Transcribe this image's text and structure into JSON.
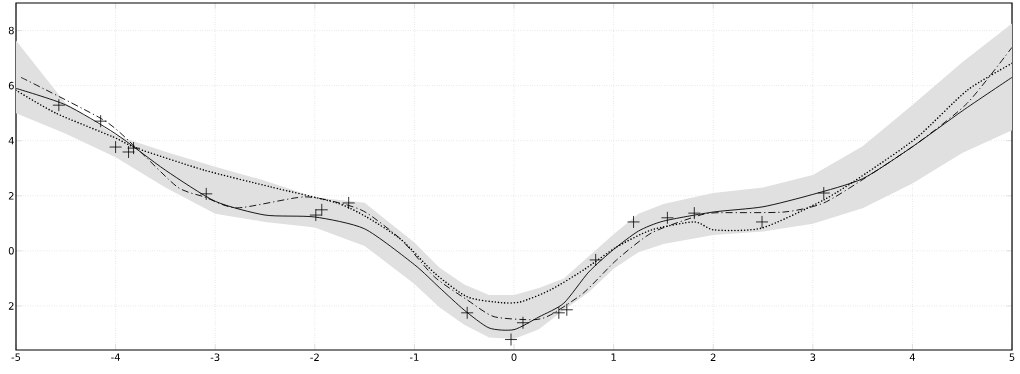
{
  "chart_data": {
    "type": "line",
    "xlim": [
      -5,
      5
    ],
    "ylim": [
      -3.6,
      9
    ],
    "xticks": [
      -5,
      -4,
      -3,
      -2,
      -1,
      0,
      1,
      2,
      3,
      4,
      5
    ],
    "yticks": [
      {
        "value": -2,
        "label": "2"
      },
      0,
      2,
      4,
      6,
      8
    ],
    "grid": true,
    "series": [
      {
        "color": "#000000",
        "line_style": "solid",
        "x": [
          -5,
          -4.5,
          -4,
          -3.5,
          -3,
          -2.5,
          -2,
          -1.5,
          -1,
          -0.75,
          -0.5,
          -0.25,
          0,
          0.25,
          0.5,
          0.75,
          1,
          1.25,
          1.5,
          2,
          2.5,
          3,
          3.5,
          4,
          4.5,
          5
        ],
        "values": [
          5.9,
          5.3,
          4.25,
          2.93,
          1.8,
          1.3,
          1.23,
          0.8,
          -0.5,
          -1.33,
          -2.15,
          -2.8,
          -2.86,
          -2.4,
          -1.9,
          -0.77,
          0.05,
          0.72,
          1.08,
          1.41,
          1.6,
          2.05,
          2.62,
          3.78,
          5.08,
          6.3
        ],
        "lower": [
          5.0,
          4.25,
          3.4,
          2.3,
          1.35,
          1.05,
          0.85,
          0.18,
          -1.2,
          -2.05,
          -2.68,
          -3.15,
          -3.2,
          -2.85,
          -2.15,
          -1.5,
          -0.65,
          -0.05,
          0.25,
          0.58,
          0.7,
          0.98,
          1.55,
          2.45,
          3.55,
          4.38
        ],
        "upper": [
          7.64,
          5.35,
          4.2,
          3.6,
          3.05,
          2.55,
          1.95,
          1.75,
          0.3,
          -0.6,
          -1.22,
          -1.6,
          -1.6,
          -1.35,
          -1.0,
          -0.2,
          0.6,
          1.35,
          1.7,
          2.1,
          2.3,
          2.75,
          3.8,
          5.3,
          6.85,
          8.26
        ]
      },
      {
        "color": "#000000",
        "line_style": "dashed",
        "x": [
          -4.95,
          -4.12,
          -3.79,
          -3.38,
          -3.11,
          -2.78,
          -2.11,
          -1.71,
          -1.48,
          -1.13,
          -0.8,
          -0.47,
          -0.2,
          0.2,
          0.37,
          0.7,
          1.03,
          1.38,
          1.81,
          2.01,
          2.71,
          3.11,
          3.54,
          4.05,
          4.55,
          5
        ],
        "values": [
          6.3,
          4.75,
          3.73,
          2.32,
          1.96,
          1.56,
          1.96,
          1.7,
          1.38,
          0.4,
          -0.94,
          -1.78,
          -2.39,
          -2.5,
          -2.32,
          -1.52,
          -0.33,
          0.65,
          1.23,
          1.38,
          1.41,
          1.74,
          2.68,
          3.91,
          5.36,
          7.39
        ]
      },
      {
        "color": "#000000",
        "line_style": "dotted",
        "x": [
          -5,
          -4.6,
          -4.02,
          -3.79,
          -3.11,
          -2.44,
          -1.78,
          -1.48,
          -1.13,
          -0.8,
          -0.47,
          -0.13,
          0.07,
          0.37,
          0.7,
          1.03,
          1.38,
          1.81,
          2.01,
          2.49,
          3.11,
          3.54,
          4.05,
          4.55,
          5
        ],
        "values": [
          5.83,
          5.0,
          4.13,
          3.73,
          2.93,
          2.32,
          1.74,
          1.23,
          0.4,
          -0.8,
          -1.67,
          -1.88,
          -1.85,
          -1.41,
          -0.69,
          0.14,
          0.76,
          1.05,
          0.76,
          0.83,
          1.85,
          2.83,
          4.13,
          5.83,
          6.81
        ]
      },
      {
        "type": "scatter",
        "color": "#000000",
        "marker": "cross",
        "x": [
          -4.57,
          -4.15,
          -4.0,
          -3.87,
          -3.82,
          -3.09,
          -1.99,
          -1.93,
          -1.66,
          -0.47,
          -0.03,
          0.09,
          0.45,
          0.53,
          0.82,
          1.2,
          1.54,
          1.81,
          2.49,
          3.11
        ],
        "values": [
          5.29,
          4.71,
          3.77,
          3.59,
          3.73,
          2.07,
          1.3,
          1.49,
          1.74,
          -2.25,
          -3.22,
          -2.61,
          -2.25,
          -2.14,
          -0.33,
          1.05,
          1.2,
          1.37,
          1.05,
          2.1
        ]
      }
    ]
  }
}
